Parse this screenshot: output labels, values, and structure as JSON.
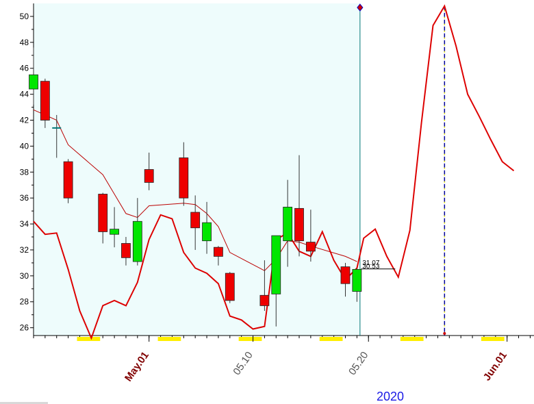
{
  "chart_data": {
    "type": "candlestick",
    "year_label": "2020",
    "ylim": [
      25.4,
      51
    ],
    "yticks": [
      26,
      28,
      30,
      32,
      34,
      36,
      38,
      40,
      42,
      44,
      46,
      48,
      50
    ],
    "ytick_labels": [
      "26",
      "28",
      "30",
      "32",
      "34",
      "36",
      "38",
      "40",
      "42",
      "44",
      "46",
      "48",
      "50"
    ],
    "xticks": [
      {
        "label": "May.01",
        "day": 10,
        "color": "#800000",
        "weight": "bold"
      },
      {
        "label": "05.10",
        "day": 19,
        "color": "#555555",
        "weight": "normal"
      },
      {
        "label": "05.20",
        "day": 29,
        "color": "#555555",
        "weight": "normal"
      },
      {
        "label": "Jun.01",
        "day": 41,
        "color": "#800000",
        "weight": "bold"
      }
    ],
    "weekend_days": [
      4,
      5,
      11,
      12,
      18,
      19,
      25,
      26,
      32,
      33,
      39,
      40
    ],
    "candles": [
      {
        "day": 0,
        "open": 44.4,
        "high": 47.6,
        "low": 43.2,
        "close": 45.5
      },
      {
        "day": 1,
        "open": 45.0,
        "high": 45.2,
        "low": 41.4,
        "close": 42.0
      },
      {
        "day": 2,
        "open": 41.4,
        "high": 42.4,
        "low": 39.1,
        "close": 41.4
      },
      {
        "day": 3,
        "open": 38.8,
        "high": 39.0,
        "low": 35.6,
        "close": 36.0
      },
      {
        "day": 6,
        "open": 36.3,
        "high": 36.4,
        "low": 32.5,
        "close": 33.4
      },
      {
        "day": 7,
        "open": 33.2,
        "high": 35.3,
        "low": 32.2,
        "close": 33.6
      },
      {
        "day": 8,
        "open": 32.5,
        "high": 33.0,
        "low": 30.8,
        "close": 31.4
      },
      {
        "day": 9,
        "open": 31.1,
        "high": 36.0,
        "low": 30.8,
        "close": 34.2
      },
      {
        "day": 10,
        "open": 38.2,
        "high": 39.5,
        "low": 36.6,
        "close": 37.2
      },
      {
        "day": 13,
        "open": 39.1,
        "high": 40.3,
        "low": 35.4,
        "close": 36.0
      },
      {
        "day": 14,
        "open": 34.9,
        "high": 36.2,
        "low": 32.0,
        "close": 33.7
      },
      {
        "day": 15,
        "open": 32.7,
        "high": 35.7,
        "low": 31.7,
        "close": 34.1
      },
      {
        "day": 16,
        "open": 32.2,
        "high": 32.3,
        "low": 30.8,
        "close": 31.5
      },
      {
        "day": 17,
        "open": 30.2,
        "high": 30.3,
        "low": 27.9,
        "close": 28.1
      },
      {
        "day": 20,
        "open": 28.5,
        "high": 31.2,
        "low": 27.3,
        "close": 27.7
      },
      {
        "day": 21,
        "open": 28.6,
        "high": 33.1,
        "low": 26.1,
        "close": 33.1
      },
      {
        "day": 22,
        "open": 32.7,
        "high": 37.4,
        "low": 30.7,
        "close": 35.3
      },
      {
        "day": 23,
        "open": 35.2,
        "high": 39.3,
        "low": 31.5,
        "close": 32.7
      },
      {
        "day": 24,
        "open": 32.6,
        "high": 35.1,
        "low": 31.1,
        "close": 31.9
      },
      {
        "day": 27,
        "open": 30.7,
        "high": 31.0,
        "low": 28.4,
        "close": 29.4
      },
      {
        "day": 28,
        "open": 28.8,
        "high": 30.6,
        "low": 28.0,
        "close": 30.5
      }
    ],
    "moving_average": [
      {
        "day": 0,
        "value": 42.8
      },
      {
        "day": 1,
        "value": 42.4
      },
      {
        "day": 2,
        "value": 42.0
      },
      {
        "day": 3,
        "value": 40.1
      },
      {
        "day": 6,
        "value": 37.8
      },
      {
        "day": 7,
        "value": 36.3
      },
      {
        "day": 8,
        "value": 34.8
      },
      {
        "day": 9,
        "value": 34.5
      },
      {
        "day": 10,
        "value": 35.4
      },
      {
        "day": 13,
        "value": 35.6
      },
      {
        "day": 14,
        "value": 35.5
      },
      {
        "day": 15,
        "value": 34.8
      },
      {
        "day": 16,
        "value": 33.8
      },
      {
        "day": 17,
        "value": 31.8
      },
      {
        "day": 20,
        "value": 30.4
      },
      {
        "day": 21,
        "value": 31.3
      },
      {
        "day": 22,
        "value": 32.7
      },
      {
        "day": 23,
        "value": 32.6
      },
      {
        "day": 24,
        "value": 32.3
      },
      {
        "day": 27,
        "value": 31.5
      },
      {
        "day": 28,
        "value": 31.1
      }
    ],
    "projection": [
      {
        "day": 0,
        "value": 34.2
      },
      {
        "day": 1,
        "value": 33.2
      },
      {
        "day": 2,
        "value": 33.3
      },
      {
        "day": 3,
        "value": 30.5
      },
      {
        "day": 4,
        "value": 27.3
      },
      {
        "day": 5,
        "value": 25.2
      },
      {
        "day": 6,
        "value": 27.7
      },
      {
        "day": 7,
        "value": 28.1
      },
      {
        "day": 8,
        "value": 27.7
      },
      {
        "day": 9,
        "value": 29.5
      },
      {
        "day": 10,
        "value": 32.8
      },
      {
        "day": 11,
        "value": 34.7
      },
      {
        "day": 12,
        "value": 34.4
      },
      {
        "day": 13,
        "value": 31.8
      },
      {
        "day": 14,
        "value": 30.6
      },
      {
        "day": 15,
        "value": 30.2
      },
      {
        "day": 16,
        "value": 29.4
      },
      {
        "day": 17,
        "value": 26.9
      },
      {
        "day": 18,
        "value": 26.6
      },
      {
        "day": 19,
        "value": 25.9
      },
      {
        "day": 20,
        "value": 26.1
      },
      {
        "day": 21,
        "value": 32.8
      },
      {
        "day": 22,
        "value": 33.3
      },
      {
        "day": 23,
        "value": 31.9
      },
      {
        "day": 24,
        "value": 31.5
      },
      {
        "day": 25,
        "value": 33.4
      },
      {
        "day": 26,
        "value": 31.2
      },
      {
        "day": 27,
        "value": 29.7
      },
      {
        "day": 28,
        "value": 30.6
      },
      {
        "day": 29,
        "value": 32.9
      },
      {
        "day": 30,
        "value": 33.6
      },
      {
        "day": 31,
        "value": 31.5
      },
      {
        "day": 32,
        "value": 29.9
      },
      {
        "day": 33,
        "value": 33.5
      },
      {
        "day": 34,
        "value": 41.8
      },
      {
        "day": 35,
        "value": 49.3
      },
      {
        "day": 36,
        "value": 50.8
      },
      {
        "day": 37,
        "value": 47.7
      },
      {
        "day": 38,
        "value": 44.0
      },
      {
        "day": 39,
        "value": 42.3
      },
      {
        "day": 40,
        "value": 40.5
      },
      {
        "day": 41,
        "value": 38.8
      },
      {
        "day": 42,
        "value": 38.1
      }
    ],
    "today_day": 28.8,
    "peak_day": 36,
    "last_value_labels": [
      "31.07",
      "30.53"
    ],
    "last_value_level": 30.53,
    "colors": {
      "up": "#00e600",
      "down": "#ee0000",
      "shade": "#eefcfc",
      "projection": "#dd0000",
      "average": "#bb0000",
      "weekend": "#ffee00",
      "today_line": "#007777",
      "peak_line": "#000099"
    }
  }
}
